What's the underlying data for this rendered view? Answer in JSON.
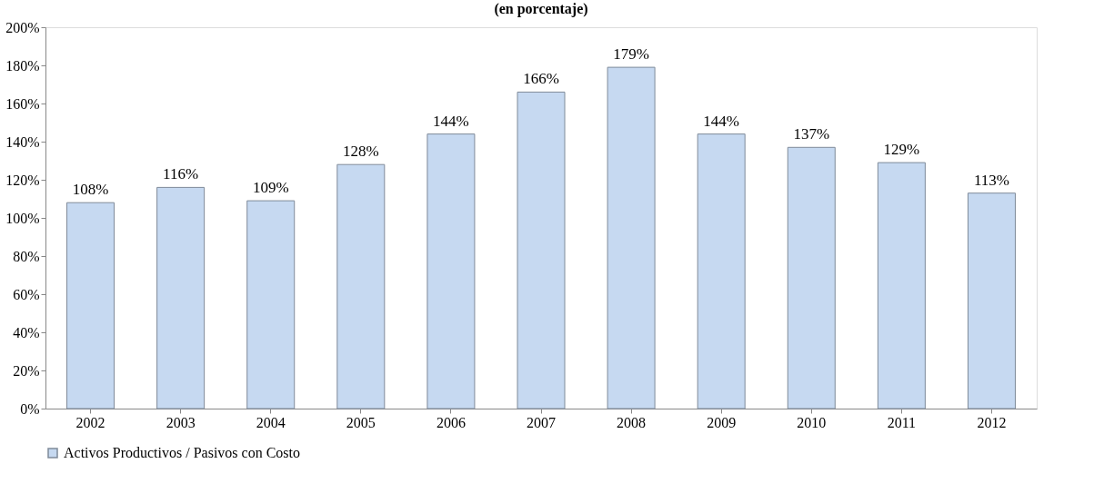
{
  "chart_data": {
    "type": "bar",
    "title": "(en porcentaje)",
    "categories": [
      "2002",
      "2003",
      "2004",
      "2005",
      "2006",
      "2007",
      "2008",
      "2009",
      "2010",
      "2011",
      "2012"
    ],
    "series": [
      {
        "name": "Activos Productivos / Pasivos con Costo",
        "color": "#c6d9f1",
        "values": [
          108,
          116,
          109,
          128,
          144,
          166,
          179,
          144,
          137,
          129,
          113
        ],
        "value_labels": [
          "108%",
          "116%",
          "109%",
          "128%",
          "144%",
          "166%",
          "179%",
          "144%",
          "137%",
          "129%",
          "113%"
        ]
      }
    ],
    "ylim": [
      0,
      200
    ],
    "yticks": [
      {
        "value": 0,
        "label": "0%"
      },
      {
        "value": 20,
        "label": "20%"
      },
      {
        "value": 40,
        "label": "40%"
      },
      {
        "value": 60,
        "label": "60%"
      },
      {
        "value": 80,
        "label": "80%"
      },
      {
        "value": 100,
        "label": "100%"
      },
      {
        "value": 120,
        "label": "120%"
      },
      {
        "value": 140,
        "label": "140%"
      },
      {
        "value": 160,
        "label": "160%"
      },
      {
        "value": 180,
        "label": "180%"
      },
      {
        "value": 200,
        "label": "200%"
      }
    ],
    "grid": false,
    "legend": "bottom"
  }
}
